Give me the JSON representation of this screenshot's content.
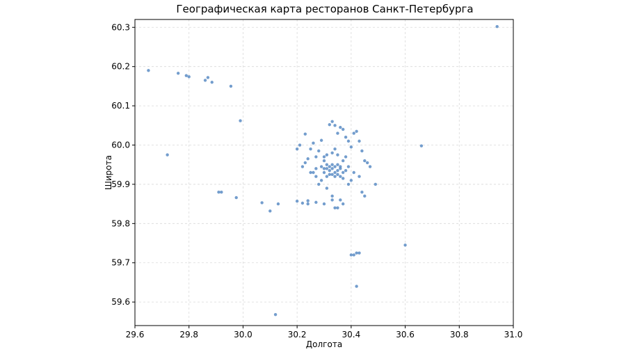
{
  "chart_data": {
    "type": "scatter",
    "title": "Географическая карта ресторанов Санкт-Петербурга",
    "xlabel": "Долгота",
    "ylabel": "Широта",
    "xlim": [
      29.6,
      31.0
    ],
    "ylim": [
      59.54,
      60.32
    ],
    "grid": true,
    "point_color": "#5b8cc4",
    "x_ticks": [
      29.6,
      29.8,
      30.0,
      30.2,
      30.4,
      30.6,
      30.8,
      31.0
    ],
    "x_tick_labels": [
      "29.6",
      "29.8",
      "30.0",
      "30.2",
      "30.4",
      "30.6",
      "30.8",
      "31.0"
    ],
    "y_ticks": [
      59.6,
      59.7,
      59.8,
      59.9,
      60.0,
      60.1,
      60.2,
      60.3
    ],
    "y_tick_labels": [
      "59.6",
      "59.7",
      "59.8",
      "59.9",
      "60.0",
      "60.1",
      "60.2",
      "60.3"
    ],
    "points": [
      [
        29.65,
        60.19
      ],
      [
        29.72,
        59.975
      ],
      [
        29.76,
        60.183
      ],
      [
        29.79,
        60.177
      ],
      [
        29.8,
        60.174
      ],
      [
        29.86,
        60.165
      ],
      [
        29.87,
        60.172
      ],
      [
        29.885,
        60.16
      ],
      [
        29.91,
        59.88
      ],
      [
        29.92,
        59.88
      ],
      [
        29.955,
        60.15
      ],
      [
        29.975,
        59.866
      ],
      [
        29.99,
        60.062
      ],
      [
        30.07,
        59.853
      ],
      [
        30.1,
        59.832
      ],
      [
        30.13,
        59.85
      ],
      [
        30.12,
        59.568
      ],
      [
        30.2,
        59.857
      ],
      [
        30.22,
        59.852
      ],
      [
        30.24,
        59.858
      ],
      [
        30.24,
        59.85
      ],
      [
        30.27,
        59.854
      ],
      [
        30.2,
        59.99
      ],
      [
        30.21,
        60.0
      ],
      [
        30.23,
        60.028
      ],
      [
        30.24,
        59.965
      ],
      [
        30.25,
        59.99
      ],
      [
        30.26,
        60.005
      ],
      [
        30.27,
        59.97
      ],
      [
        30.28,
        59.985
      ],
      [
        30.29,
        60.012
      ],
      [
        30.3,
        59.96
      ],
      [
        30.31,
        59.95
      ],
      [
        30.32,
        60.052
      ],
      [
        30.33,
        60.06
      ],
      [
        30.34,
        60.05
      ],
      [
        30.35,
        60.03
      ],
      [
        30.36,
        60.045
      ],
      [
        30.37,
        60.04
      ],
      [
        30.38,
        60.02
      ],
      [
        30.39,
        60.01
      ],
      [
        30.4,
        59.995
      ],
      [
        30.41,
        60.03
      ],
      [
        30.42,
        60.035
      ],
      [
        30.43,
        60.01
      ],
      [
        30.44,
        59.985
      ],
      [
        30.45,
        59.96
      ],
      [
        30.46,
        59.955
      ],
      [
        30.47,
        59.945
      ],
      [
        30.49,
        59.9
      ],
      [
        30.44,
        59.88
      ],
      [
        30.45,
        59.87
      ],
      [
        30.41,
        59.93
      ],
      [
        30.43,
        59.92
      ],
      [
        30.4,
        59.91
      ],
      [
        30.39,
        59.9
      ],
      [
        30.36,
        59.86
      ],
      [
        30.37,
        59.85
      ],
      [
        30.35,
        59.84
      ],
      [
        30.34,
        59.84
      ],
      [
        30.33,
        59.87
      ],
      [
        30.33,
        59.86
      ],
      [
        30.3,
        59.85
      ],
      [
        30.31,
        59.89
      ],
      [
        30.28,
        59.9
      ],
      [
        30.26,
        59.93
      ],
      [
        30.27,
        59.94
      ],
      [
        30.29,
        59.945
      ],
      [
        30.3,
        59.93
      ],
      [
        30.31,
        59.92
      ],
      [
        30.32,
        59.935
      ],
      [
        30.33,
        59.94
      ],
      [
        30.34,
        59.93
      ],
      [
        30.35,
        59.935
      ],
      [
        30.36,
        59.94
      ],
      [
        30.37,
        59.93
      ],
      [
        30.38,
        59.935
      ],
      [
        30.39,
        59.945
      ],
      [
        30.32,
        59.945
      ],
      [
        30.33,
        59.95
      ],
      [
        30.34,
        59.945
      ],
      [
        30.35,
        59.95
      ],
      [
        30.36,
        59.945
      ],
      [
        30.3,
        59.97
      ],
      [
        30.31,
        59.975
      ],
      [
        30.33,
        59.98
      ],
      [
        30.34,
        59.99
      ],
      [
        30.35,
        59.975
      ],
      [
        30.37,
        59.96
      ],
      [
        30.38,
        59.97
      ],
      [
        30.22,
        59.945
      ],
      [
        30.23,
        59.955
      ],
      [
        30.25,
        59.93
      ],
      [
        30.27,
        59.92
      ],
      [
        30.29,
        59.91
      ],
      [
        30.3,
        59.94
      ],
      [
        30.31,
        59.94
      ],
      [
        30.32,
        59.925
      ],
      [
        30.33,
        59.925
      ],
      [
        30.34,
        59.92
      ],
      [
        30.35,
        59.925
      ],
      [
        30.36,
        59.92
      ],
      [
        30.37,
        59.915
      ],
      [
        30.4,
        59.72
      ],
      [
        30.41,
        59.72
      ],
      [
        30.42,
        59.725
      ],
      [
        30.43,
        59.725
      ],
      [
        30.42,
        59.64
      ],
      [
        30.6,
        59.745
      ],
      [
        30.66,
        59.998
      ],
      [
        30.94,
        60.302
      ]
    ]
  }
}
